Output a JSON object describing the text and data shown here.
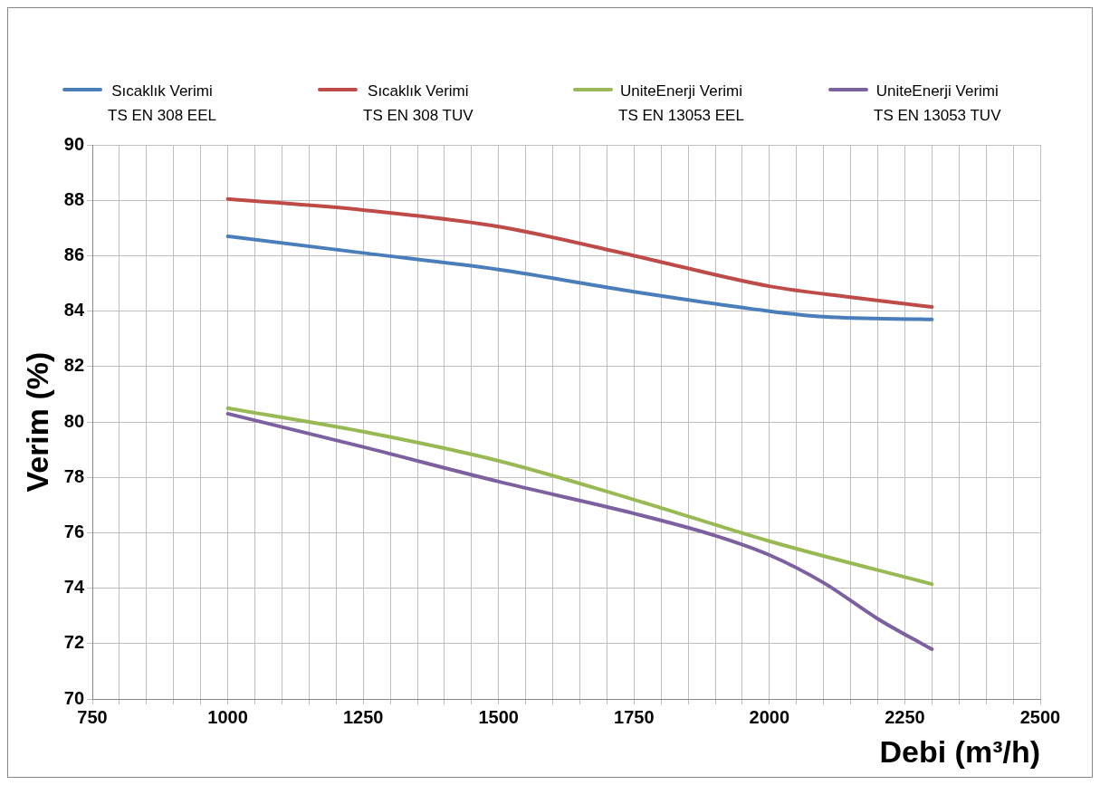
{
  "chart_data": {
    "type": "line",
    "xlabel": "Debi (m³/h)",
    "ylabel": "Verim (%)",
    "xlim": [
      750,
      2500
    ],
    "ylim": [
      70,
      90
    ],
    "xticks": [
      750,
      {
        "value": 800,
        "label": null
      },
      {
        "value": 850,
        "label": null
      },
      {
        "value": 900,
        "label": null
      },
      {
        "value": 950,
        "label": null
      },
      1000,
      {
        "value": 1050,
        "label": null
      },
      {
        "value": 1100,
        "label": null
      },
      {
        "value": 1150,
        "label": null
      },
      {
        "value": 1200,
        "label": null
      },
      1250,
      {
        "value": 1300,
        "label": null
      },
      {
        "value": 1350,
        "label": null
      },
      {
        "value": 1400,
        "label": null
      },
      {
        "value": 1450,
        "label": null
      },
      1500,
      {
        "value": 1550,
        "label": null
      },
      {
        "value": 1600,
        "label": null
      },
      {
        "value": 1650,
        "label": null
      },
      {
        "value": 1700,
        "label": null
      },
      1750,
      {
        "value": 1800,
        "label": null
      },
      {
        "value": 1850,
        "label": null
      },
      {
        "value": 1900,
        "label": null
      },
      {
        "value": 1950,
        "label": null
      },
      2000,
      {
        "value": 2050,
        "label": null
      },
      {
        "value": 2100,
        "label": null
      },
      {
        "value": 2150,
        "label": null
      },
      {
        "value": 2200,
        "label": null
      },
      2250,
      {
        "value": 2300,
        "label": null
      },
      {
        "value": 2350,
        "label": null
      },
      {
        "value": 2400,
        "label": null
      },
      {
        "value": 2450,
        "label": null
      },
      2500
    ],
    "yticks": [
      70,
      72,
      74,
      76,
      78,
      80,
      82,
      84,
      86,
      88,
      90
    ],
    "grid": true,
    "legend": "top",
    "marker": "none",
    "line_style": "solid",
    "series": [
      {
        "name": "Sıcaklık Verimi\nTS EN 308 EEL",
        "color": "#4a7ebb",
        "x": [
          1000,
          1250,
          1500,
          1750,
          2000,
          2100,
          2300
        ],
        "values": [
          86.7,
          86.1,
          85.5,
          84.7,
          84.0,
          83.8,
          83.7
        ]
      },
      {
        "name": "Sıcaklık Verimi\nTS EN 308 TUV",
        "color": "#be4b48",
        "x": [
          1000,
          1250,
          1500,
          1750,
          2000,
          2150,
          2300
        ],
        "values": [
          88.05,
          87.65,
          87.05,
          86.0,
          84.9,
          84.5,
          84.15
        ]
      },
      {
        "name": "UniteEnerji Verimi\nTS EN 13053 EEL",
        "color": "#98b954",
        "x": [
          1000,
          1250,
          1500,
          1750,
          2000,
          2300
        ],
        "values": [
          80.5,
          79.65,
          78.6,
          77.2,
          75.7,
          74.15
        ]
      },
      {
        "name": "UniteEnerji Verimi\nTS EN 13053 TUV",
        "color": "#7d60a0",
        "x": [
          1000,
          1250,
          1500,
          1750,
          1900,
          2000,
          2100,
          2200,
          2300
        ],
        "values": [
          80.3,
          79.1,
          77.85,
          76.7,
          75.9,
          75.2,
          74.2,
          72.9,
          71.8
        ]
      }
    ]
  }
}
